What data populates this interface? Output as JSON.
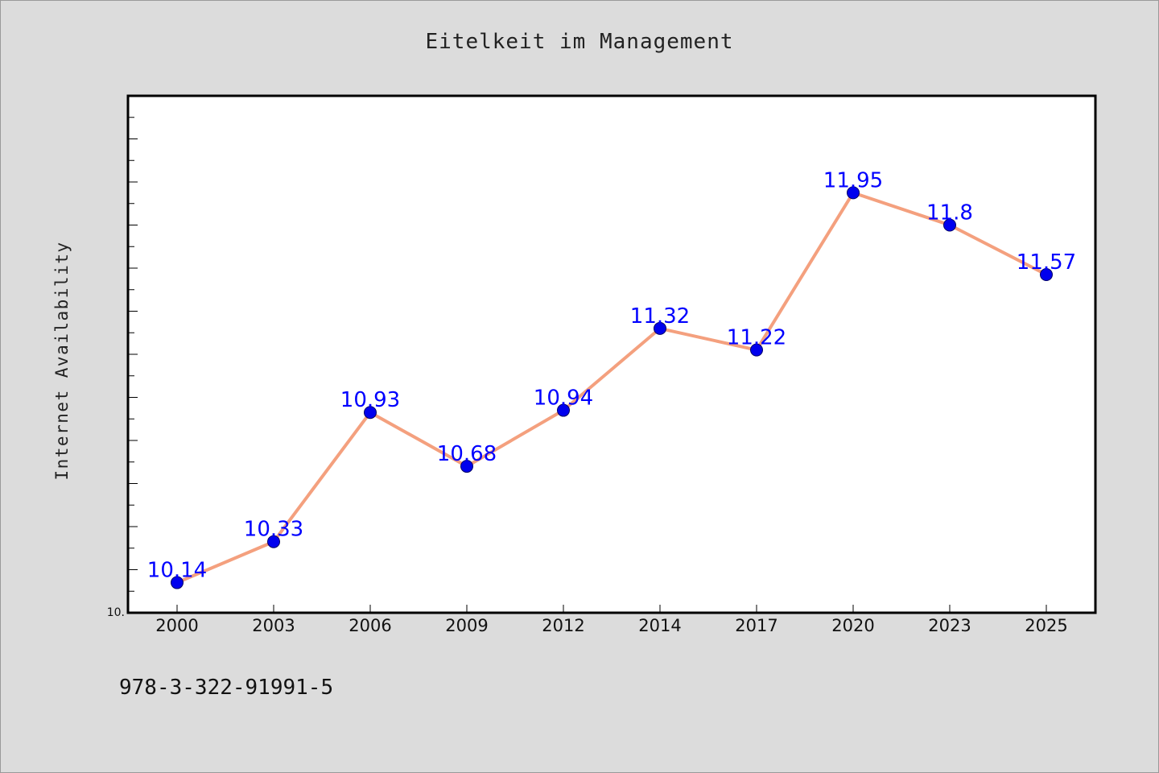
{
  "chart_data": {
    "type": "line",
    "title": "Eitelkeit im Management",
    "xlabel": "",
    "ylabel": "Internet Availability",
    "categories": [
      "2000",
      "2003",
      "2006",
      "2009",
      "2012",
      "2014",
      "2017",
      "2020",
      "2023",
      "2025"
    ],
    "series": [
      {
        "values": [
          10.14,
          10.33,
          10.93,
          10.68,
          10.94,
          11.32,
          11.22,
          11.95,
          11.8,
          11.57
        ],
        "labels": [
          "10.14",
          "10.33",
          "10.93",
          "10.68",
          "10.94",
          "11.32",
          "11.22",
          "11.95",
          "11.8",
          "11.57"
        ],
        "line_color": "#f4a07e",
        "marker_color": "#0000ee"
      }
    ],
    "ylim": [
      10.0,
      12.4
    ],
    "ytick_label": "10.",
    "grid": false,
    "legend": "none"
  },
  "footer": {
    "code": "978-3-322-91991-5"
  },
  "colors": {
    "background": "#dcdcdc",
    "plot_background": "#ffffff",
    "data_label": "#0000ff"
  }
}
